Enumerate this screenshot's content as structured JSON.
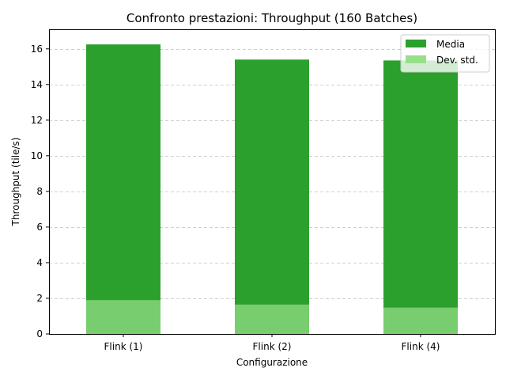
{
  "chart_data": {
    "type": "bar",
    "title": "Confronto prestazioni: Throughput (160 Batches)",
    "xlabel": "Configurazione",
    "ylabel": "Throughput (tile/s)",
    "categories": [
      "Flink (1)",
      "Flink (2)",
      "Flink (4)"
    ],
    "series": [
      {
        "name": "Media",
        "values": [
          16.25,
          15.4,
          15.35
        ],
        "color": "#2ca02c"
      },
      {
        "name": "Dev. std.",
        "values": [
          1.9,
          1.65,
          1.48
        ],
        "color": "#98df8a"
      }
    ],
    "ylim": [
      0,
      17.1
    ],
    "yticks": [
      0,
      2,
      4,
      6,
      8,
      10,
      12,
      14,
      16
    ],
    "grid": true,
    "legend_position": "top-right"
  }
}
